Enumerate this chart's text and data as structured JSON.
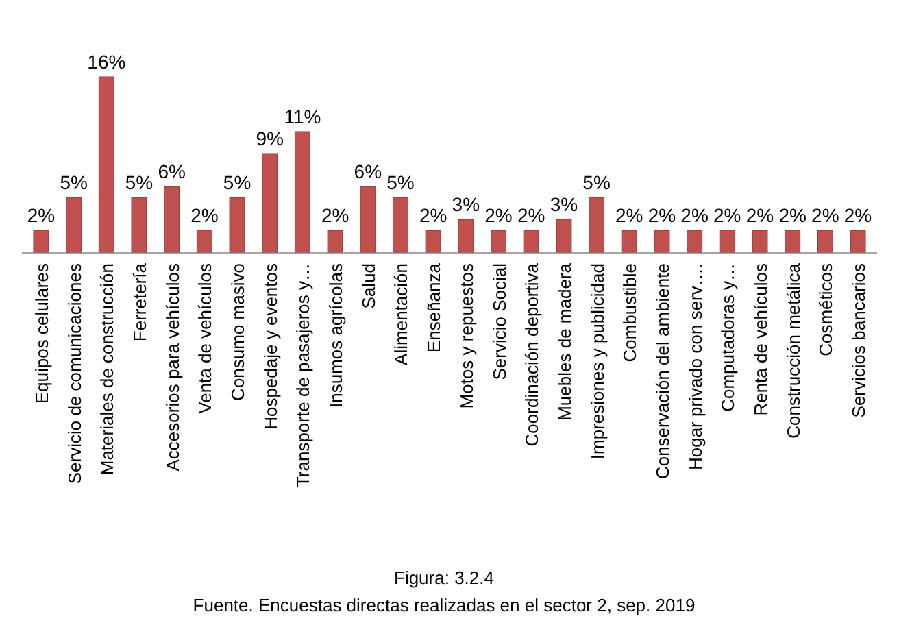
{
  "chart_data": {
    "type": "bar",
    "relative": false,
    "categories": [
      "Equipos celulares",
      "Servicio de comunicaciones",
      "Materiales de construcción",
      "Ferretería",
      "Accesorios para vehículos",
      "Venta de vehículos",
      "Consumo masivo",
      "Hospedaje y eventos",
      "Transporte de pasajeros y…",
      "Insumos agrícolas",
      "Salud",
      "Alimentación",
      "Enseñanza",
      "Motos y repuestos",
      "Servicio Social",
      "Coordinación deportiva",
      "Muebles de madera",
      "Impresiones y publicidad",
      "Combustible",
      "Conservación del ambiente",
      "Hogar privado con serv….",
      "Computadoras y…",
      "Renta de vehículos",
      "Construcción metálica",
      "Cosméticos",
      "Servicios bancarios"
    ],
    "values": [
      2,
      5,
      16,
      5,
      6,
      2,
      5,
      9,
      11,
      2,
      6,
      5,
      2,
      3,
      2,
      2,
      3,
      5,
      2,
      2,
      2,
      2,
      2,
      2,
      2,
      2
    ],
    "value_labels": [
      "2%",
      "5%",
      "16%",
      "5%",
      "6%",
      "2%",
      "5%",
      "9%",
      "11%",
      "2%",
      "6%",
      "5%",
      "2%",
      "3%",
      "2%",
      "2%",
      "3%",
      "5%",
      "2%",
      "2%",
      "2%",
      "2%",
      "2%",
      "2%",
      "2%",
      "2%"
    ],
    "color": "#c0504d",
    "annotations": [
      "Figura: 3.2.4",
      "Fuente. Encuestas directas realizadas en el sector 2, sep. 2019"
    ]
  }
}
